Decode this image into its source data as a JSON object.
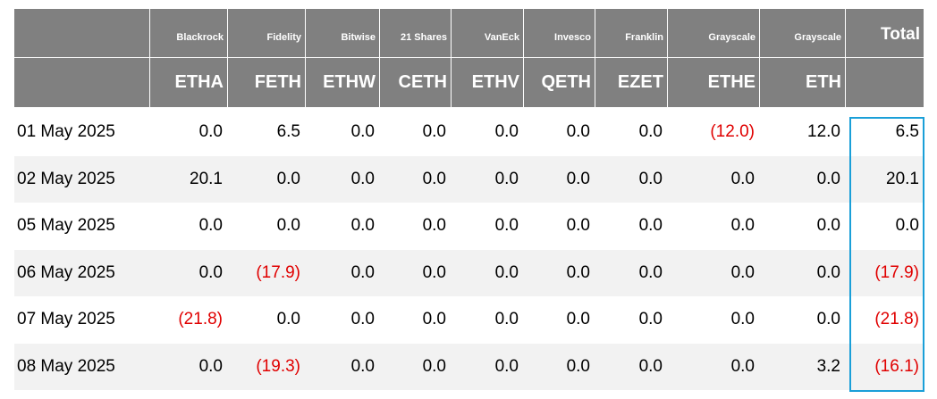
{
  "header": {
    "issuers": [
      "Blackrock",
      "Fidelity",
      "Bitwise",
      "21 Shares",
      "VanEck",
      "Invesco",
      "Franklin",
      "Grayscale",
      "Grayscale",
      "Total"
    ],
    "tickers": [
      "ETHA",
      "FETH",
      "ETHW",
      "CETH",
      "ETHV",
      "QETH",
      "EZET",
      "ETHE",
      "ETH"
    ]
  },
  "rows": [
    {
      "date": "01 May 2025",
      "values": [
        "0.0",
        "6.5",
        "0.0",
        "0.0",
        "0.0",
        "0.0",
        "0.0",
        "(12.0)",
        "12.0",
        "6.5"
      ]
    },
    {
      "date": "02 May 2025",
      "values": [
        "20.1",
        "0.0",
        "0.0",
        "0.0",
        "0.0",
        "0.0",
        "0.0",
        "0.0",
        "0.0",
        "20.1"
      ]
    },
    {
      "date": "05 May 2025",
      "values": [
        "0.0",
        "0.0",
        "0.0",
        "0.0",
        "0.0",
        "0.0",
        "0.0",
        "0.0",
        "0.0",
        "0.0"
      ]
    },
    {
      "date": "06 May 2025",
      "values": [
        "0.0",
        "(17.9)",
        "0.0",
        "0.0",
        "0.0",
        "0.0",
        "0.0",
        "0.0",
        "0.0",
        "(17.9)"
      ]
    },
    {
      "date": "07 May 2025",
      "values": [
        "(21.8)",
        "0.0",
        "0.0",
        "0.0",
        "0.0",
        "0.0",
        "0.0",
        "0.0",
        "0.0",
        "(21.8)"
      ]
    },
    {
      "date": "08 May 2025",
      "values": [
        "0.0",
        "(19.3)",
        "0.0",
        "0.0",
        "0.0",
        "0.0",
        "0.0",
        "0.0",
        "3.2",
        "(16.1)"
      ]
    }
  ]
}
